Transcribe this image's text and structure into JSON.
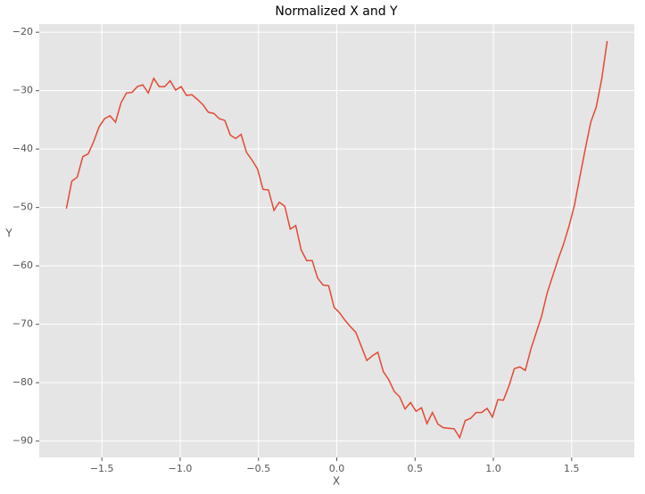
{
  "chart_data": {
    "type": "line",
    "title": "Normalized X and Y",
    "xlabel": "X",
    "ylabel": "Y",
    "x": [
      -1.727,
      -1.692,
      -1.657,
      -1.622,
      -1.587,
      -1.552,
      -1.518,
      -1.483,
      -1.448,
      -1.413,
      -1.378,
      -1.343,
      -1.308,
      -1.273,
      -1.239,
      -1.204,
      -1.169,
      -1.134,
      -1.099,
      -1.064,
      -1.029,
      -0.994,
      -0.96,
      -0.925,
      -0.89,
      -0.855,
      -0.82,
      -0.785,
      -0.75,
      -0.715,
      -0.68,
      -0.646,
      -0.611,
      -0.576,
      -0.541,
      -0.506,
      -0.471,
      -0.436,
      -0.401,
      -0.367,
      -0.332,
      -0.297,
      -0.262,
      -0.227,
      -0.192,
      -0.157,
      -0.122,
      -0.087,
      -0.052,
      -0.017,
      0.017,
      0.052,
      0.087,
      0.122,
      0.157,
      0.192,
      0.227,
      0.262,
      0.297,
      0.332,
      0.367,
      0.401,
      0.436,
      0.471,
      0.506,
      0.541,
      0.576,
      0.611,
      0.646,
      0.68,
      0.715,
      0.75,
      0.785,
      0.82,
      0.855,
      0.89,
      0.925,
      0.96,
      0.994,
      1.029,
      1.064,
      1.099,
      1.134,
      1.169,
      1.204,
      1.239,
      1.273,
      1.308,
      1.343,
      1.378,
      1.413,
      1.448,
      1.483,
      1.518,
      1.552,
      1.587,
      1.622,
      1.657,
      1.692,
      1.727
    ],
    "series": [
      {
        "name": "Y",
        "color": "#e24a33",
        "values": [
          -50.2,
          -45.5,
          -44.8,
          -41.3,
          -40.8,
          -38.7,
          -36.2,
          -34.8,
          -34.3,
          -35.4,
          -32.1,
          -30.4,
          -30.3,
          -29.3,
          -29.0,
          -30.4,
          -27.9,
          -29.3,
          -29.3,
          -28.3,
          -29.9,
          -29.3,
          -30.8,
          -30.7,
          -31.5,
          -32.4,
          -33.7,
          -33.9,
          -34.8,
          -35.1,
          -37.6,
          -38.2,
          -37.5,
          -40.6,
          -41.9,
          -43.4,
          -46.9,
          -47.0,
          -50.5,
          -49.1,
          -49.8,
          -53.7,
          -53.1,
          -57.3,
          -59.1,
          -59.1,
          -62.1,
          -63.3,
          -63.4,
          -67.1,
          -68.0,
          -69.3,
          -70.4,
          -71.4,
          -73.8,
          -76.2,
          -75.4,
          -74.8,
          -78.1,
          -79.5,
          -81.5,
          -82.4,
          -84.5,
          -83.4,
          -84.9,
          -84.3,
          -87.0,
          -85.1,
          -87.1,
          -87.7,
          -87.8,
          -87.9,
          -89.4,
          -86.5,
          -86.1,
          -85.1,
          -85.1,
          -84.4,
          -85.9,
          -82.9,
          -83.0,
          -80.6,
          -77.6,
          -77.3,
          -77.9,
          -74.3,
          -71.5,
          -68.6,
          -64.7,
          -61.8,
          -58.9,
          -56.3,
          -53.2,
          -49.6,
          -44.8,
          -40.0,
          -35.4,
          -32.8,
          -28.0,
          -21.5
        ]
      }
    ],
    "xlim": [
      -1.9,
      1.9
    ],
    "xticks": [
      {
        "value": -1.5,
        "label": "−1.5"
      },
      {
        "value": -1.0,
        "label": "−1.0"
      },
      {
        "value": -0.5,
        "label": "−0.5"
      },
      {
        "value": 0,
        "label": "0.0"
      },
      0.5,
      {
        "value": 1,
        "label": "1.0"
      },
      1.5
    ],
    "ylim": [
      -92.8,
      -18.6
    ],
    "yticks": [
      {
        "value": -90,
        "label": "−90"
      },
      {
        "value": -80,
        "label": "−80"
      },
      {
        "value": -70,
        "label": "−70"
      },
      {
        "value": -60,
        "label": "−60"
      },
      {
        "value": -50,
        "label": "−50"
      },
      {
        "value": -40,
        "label": "−40"
      },
      {
        "value": -30,
        "label": "−30"
      },
      {
        "value": -20,
        "label": "−20"
      }
    ],
    "grid": true
  }
}
